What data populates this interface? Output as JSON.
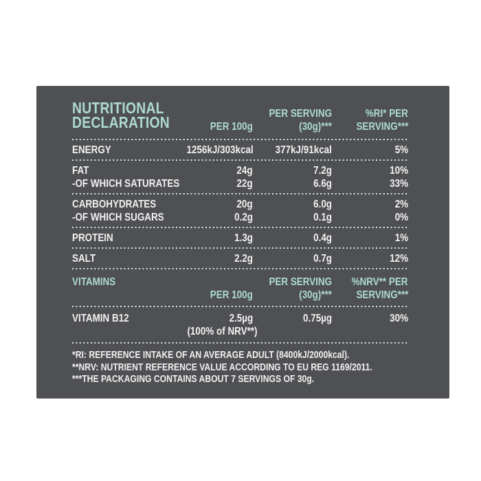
{
  "page": {
    "background": "#ffffff"
  },
  "panel": {
    "background": "#4e5054",
    "accent_color": "#aedacf",
    "text_color": "#f2f1ee",
    "divider_dot_color": "#dcece7",
    "title": {
      "line1": "NUTRITIONAL",
      "line2": "DECLARATION"
    },
    "main_table": {
      "header": {
        "per100": "PER 100g",
        "serving_line1": "PER SERVING",
        "serving_line2": "(30g)***",
        "ri_line1": "%RI* PER",
        "ri_line2": "SERVING***"
      },
      "rows": [
        {
          "label": "ENERGY",
          "per100": "1256kJ/303kcal",
          "serving": "377kJ/91kcal",
          "ri": "5%"
        },
        {
          "label": "FAT",
          "per100": "24g",
          "serving": "7.2g",
          "ri": "10%"
        },
        {
          "label": "-OF WHICH SATURATES",
          "per100": "22g",
          "serving": "6.6g",
          "ri": "33%"
        },
        {
          "label": "CARBOHYDRATES",
          "per100": "20g",
          "serving": "6.0g",
          "ri": "2%"
        },
        {
          "label": "-OF WHICH SUGARS",
          "per100": "0.2g",
          "serving": "0.1g",
          "ri": "0%"
        },
        {
          "label": "PROTEIN",
          "per100": "1.3g",
          "serving": "0.4g",
          "ri": "1%"
        },
        {
          "label": "SALT",
          "per100": "2.2g",
          "serving": "0.7g",
          "ri": "12%"
        }
      ]
    },
    "vitamins_table": {
      "section_title": "VITAMINS",
      "header": {
        "per100": "PER 100g",
        "serving_line1": "PER SERVING",
        "serving_line2": "(30g)***",
        "nrv_line1": "%NRV** PER",
        "nrv_line2": "SERVING***"
      },
      "rows": [
        {
          "label": "VITAMIN B12",
          "per100": "2.5µg",
          "per100_note": "(100% of NRV**)",
          "serving": "0.75µg",
          "nrv": "30%"
        }
      ]
    },
    "footnotes": [
      "*RI: REFERENCE INTAKE OF AN AVERAGE ADULT (8400kJ/2000kcal).",
      "**NRV: NUTRIENT REFERENCE VALUE ACCORDING TO EU REG 1169/2011.",
      "***THE PACKAGING CONTAINS ABOUT 7 SERVINGS OF 30g."
    ]
  }
}
